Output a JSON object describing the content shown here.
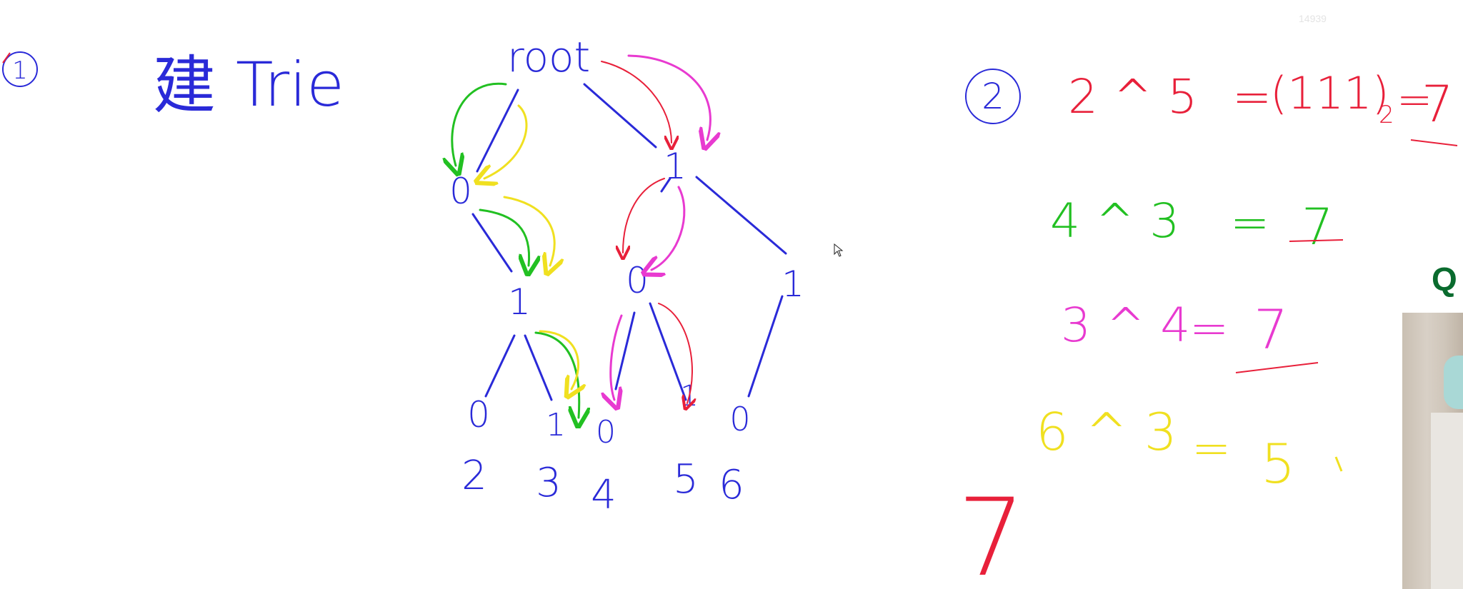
{
  "counter": "14939",
  "left": {
    "circle_number": "1",
    "title_char": "建",
    "title_word": "Trie"
  },
  "tree": {
    "root_label": "root",
    "level1": [
      "0",
      "1"
    ],
    "level2": [
      "1",
      "0",
      "1"
    ],
    "level3": [
      "0",
      "1",
      "0",
      "1",
      "0"
    ],
    "leaf_values": [
      "2",
      "3",
      "4",
      "5",
      "6"
    ]
  },
  "right": {
    "circle_number": "2",
    "equations": [
      {
        "lhs": "2 ^ 5",
        "rhs": "(111)",
        "sub": "2",
        "result": "7",
        "color": "#e8203a"
      },
      {
        "lhs": "4 ^ 3",
        "rhs": "7",
        "color": "#22c022"
      },
      {
        "lhs": "3 ^ 4",
        "rhs": "7",
        "color": "#e83ad0"
      },
      {
        "lhs": "6 ^ 3",
        "rhs": "5",
        "color": "#f0e020"
      }
    ],
    "answer": "7"
  },
  "q_label": "Q",
  "colors": {
    "ink_blue": "#2a2ad8",
    "red": "#e8203a",
    "green": "#22c022",
    "magenta": "#e83ad0",
    "yellow": "#f0e020"
  }
}
